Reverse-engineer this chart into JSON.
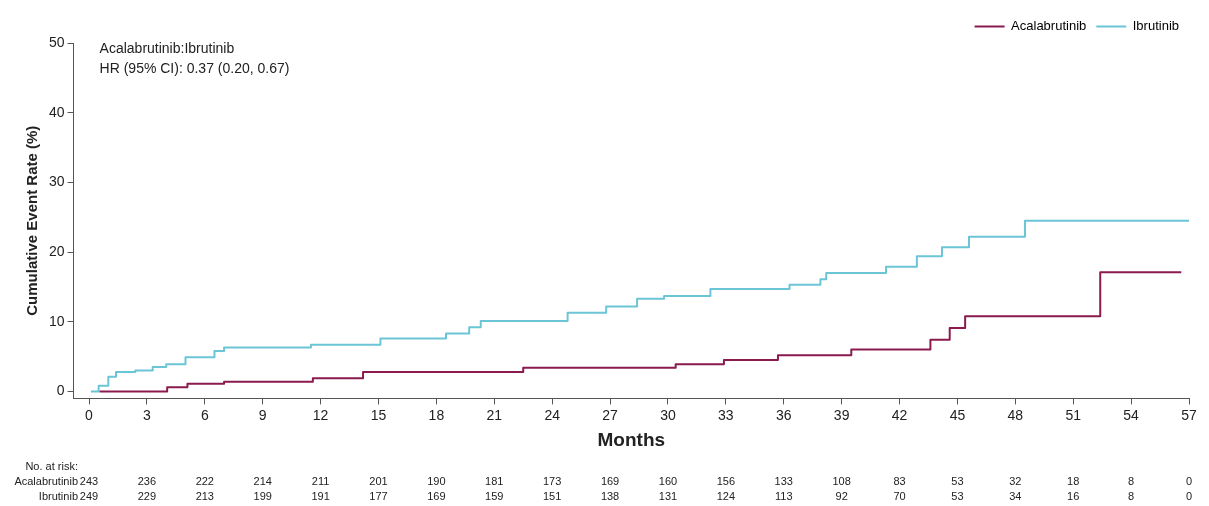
{
  "chart_data": {
    "type": "step",
    "xlabel": "Months",
    "ylabel": "Cumulative Event Rate (%)",
    "xlim": [
      -0.8,
      57
    ],
    "xticks": [
      0,
      3,
      6,
      9,
      12,
      15,
      18,
      21,
      24,
      27,
      30,
      33,
      36,
      39,
      42,
      45,
      48,
      51,
      54,
      57
    ],
    "ylim": [
      -1,
      50
    ],
    "yticks": [
      0,
      10,
      20,
      30,
      40,
      50
    ],
    "grid": false,
    "legend": "top right",
    "series": [
      {
        "name": "Acalabrutinib",
        "color": "#8b1a4f",
        "x": [
          0.55,
          4.05,
          5.1,
          7.0,
          11.6,
          14.2,
          22.5,
          30.4,
          32.9,
          35.7,
          39.5,
          43.6,
          44.6,
          45.4,
          52.4,
          56.6
        ],
        "values": [
          0,
          0.6,
          1.1,
          1.4,
          1.9,
          2.8,
          3.4,
          3.9,
          4.5,
          5.2,
          6.0,
          7.4,
          9.1,
          10.8,
          17.1,
          17.1
        ]
      },
      {
        "name": "Ibrutinib",
        "color": "#6cc5d6",
        "x": [
          0.1,
          0.5,
          1.0,
          1.4,
          2.4,
          3.3,
          4.0,
          5.0,
          6.5,
          7.0,
          11.5,
          15.1,
          18.5,
          19.7,
          20.3,
          24.8,
          26.8,
          28.4,
          29.8,
          32.2,
          36.3,
          37.9,
          38.2,
          41.3,
          42.9,
          44.2,
          45.6,
          48.5,
          57.0
        ],
        "values": [
          0,
          0.8,
          2.1,
          2.8,
          3.0,
          3.5,
          3.9,
          4.9,
          5.8,
          6.3,
          6.7,
          7.6,
          8.3,
          9.2,
          10.1,
          11.3,
          12.2,
          13.3,
          13.7,
          14.7,
          15.3,
          16.1,
          17.0,
          17.9,
          19.4,
          20.7,
          22.2,
          24.5,
          24.5
        ]
      }
    ],
    "annotations": [
      "Acalabrutinib:Ibrutinib",
      "HR (95% CI): 0.37 (0.20, 0.67)",
      "No. at risk:",
      "Acalabrutinib",
      "243",
      "236",
      "222",
      "214",
      "211",
      "201",
      "190",
      "181",
      "173",
      "169",
      "160",
      "156",
      "133",
      "108",
      "83",
      "53",
      "32",
      "18",
      "8",
      "0",
      "Ibrutinib",
      "249",
      "229",
      "213",
      "199",
      "191",
      "177",
      "169",
      "159",
      "151",
      "138",
      "131",
      "124",
      "113",
      "92",
      "70",
      "53",
      "34",
      "16",
      "8",
      "0"
    ]
  }
}
